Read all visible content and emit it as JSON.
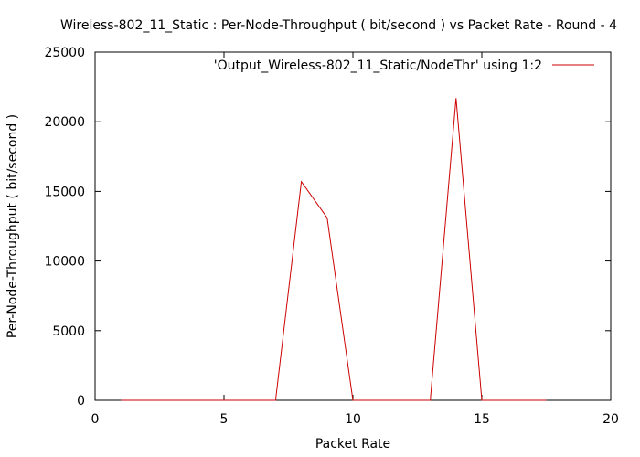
{
  "chart_data": {
    "type": "line",
    "title": "Wireless-802_11_Static : Per-Node-Throughput ( bit/second ) vs Packet Rate - Round - 4",
    "xlabel": "Packet Rate",
    "ylabel": "Per-Node-Throughput ( bit/second )",
    "xlim": [
      0,
      20
    ],
    "ylim": [
      0,
      25000
    ],
    "xticks": [
      0,
      5,
      10,
      15,
      20
    ],
    "yticks": [
      0,
      5000,
      10000,
      15000,
      20000,
      25000
    ],
    "grid": false,
    "legend_position": "top-right",
    "series": [
      {
        "name": "'Output_Wireless-802_11_Static/NodeThr' using 1:2",
        "color": "#cc0000",
        "x": [
          1,
          2,
          3,
          4,
          5,
          6,
          7,
          8,
          9,
          10,
          11,
          12,
          13,
          14,
          15,
          16,
          17,
          17.5
        ],
        "y": [
          0,
          0,
          0,
          0,
          0,
          0,
          0,
          15700,
          13100,
          0,
          0,
          0,
          0,
          21700,
          0,
          0,
          0,
          0
        ]
      }
    ]
  }
}
